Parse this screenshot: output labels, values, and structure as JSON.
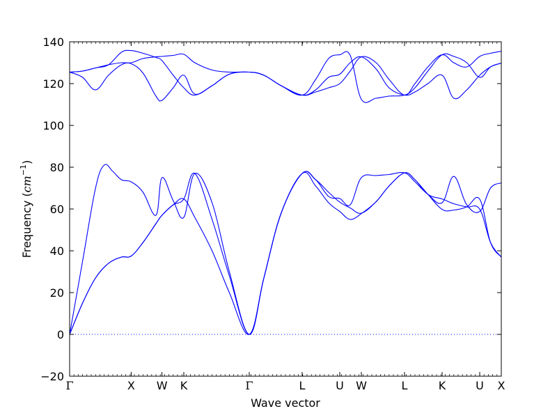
{
  "chart_data": {
    "type": "line",
    "title": "",
    "xlabel": "Wave vector",
    "ylabel": "Frequency (cm⁻¹)",
    "ylabel_parts": {
      "text": "Frequency (",
      "unit": "cm",
      "exp": "−1",
      "close": ")"
    },
    "ylim": [
      -20,
      140
    ],
    "xlim": [
      0,
      10.0
    ],
    "yticks": [
      -20,
      0,
      20,
      40,
      60,
      80,
      100,
      120,
      140
    ],
    "ytick_labels": [
      "−20",
      "0",
      "20",
      "40",
      "60",
      "80",
      "100",
      "120",
      "140"
    ],
    "xticks": [
      {
        "x": 0.0,
        "label": "Γ"
      },
      {
        "x": 1.426,
        "label": "X"
      },
      {
        "x": 2.139,
        "label": "W"
      },
      {
        "x": 2.645,
        "label": "K"
      },
      {
        "x": 4.161,
        "label": "Γ"
      },
      {
        "x": 5.387,
        "label": "L"
      },
      {
        "x": 6.258,
        "label": "U"
      },
      {
        "x": 6.758,
        "label": "W"
      },
      {
        "x": 7.758,
        "label": "L"
      },
      {
        "x": 8.629,
        "label": "K"
      },
      {
        "x": 9.5,
        "label": "U"
      },
      {
        "x": 10.0,
        "label": "X"
      }
    ],
    "zero_line": {
      "y": 0,
      "style": "dotted"
    },
    "grid": false,
    "legend": "none",
    "color": "#0000ff",
    "series": [
      {
        "x": [
          0,
          0.3,
          0.6,
          0.9,
          1.2,
          1.426,
          1.7,
          2.0,
          2.139,
          2.4,
          2.645,
          2.9,
          3.3,
          3.7,
          4.161,
          4.5,
          4.9,
          5.387,
          5.7,
          6.0,
          6.258,
          6.5,
          6.758,
          7.1,
          7.4,
          7.758,
          8.0,
          8.3,
          8.629,
          8.9,
          9.2,
          9.5,
          9.75,
          10.0
        ],
        "y": [
          0,
          15,
          27,
          34,
          37,
          37.5,
          44,
          53,
          57,
          62,
          64.8,
          56,
          40,
          20,
          0,
          27,
          58,
          77,
          74,
          68,
          63.3,
          60.5,
          58,
          63.5,
          71,
          77.3,
          74,
          67,
          64.8,
          62.5,
          61,
          59.9,
          44,
          37
        ]
      },
      {
        "x": [
          0,
          0.3,
          0.6,
          0.9,
          1.2,
          1.426,
          1.7,
          2.0,
          2.139,
          2.4,
          2.645,
          2.9,
          3.3,
          3.7,
          4.161,
          4.5,
          4.9,
          5.387,
          5.7,
          6.0,
          6.258,
          6.5,
          6.758,
          7.1,
          7.4,
          7.758,
          8.0,
          8.3,
          8.629,
          8.9,
          9.2,
          9.5,
          9.75,
          10.0
        ],
        "y": [
          0,
          15,
          27,
          34,
          37,
          37.5,
          44,
          53,
          57,
          62,
          64.8,
          77,
          55,
          28,
          0,
          27,
          58,
          77,
          71,
          63,
          58.8,
          55,
          57.8,
          63.5,
          71,
          77.3,
          74,
          67,
          59.8,
          59.5,
          61,
          64.7,
          44,
          37
        ]
      },
      {
        "x": [
          0,
          0.3,
          0.6,
          0.8,
          1.0,
          1.2,
          1.426,
          1.7,
          2.0,
          2.139,
          2.4,
          2.645,
          2.9,
          3.3,
          3.7,
          4.161,
          4.5,
          4.9,
          5.387,
          5.7,
          6.0,
          6.258,
          6.5,
          6.758,
          7.1,
          7.4,
          7.758,
          8.0,
          8.3,
          8.629,
          8.9,
          9.2,
          9.5,
          9.75,
          10.0
        ],
        "y": [
          0,
          35,
          70,
          81,
          78,
          74,
          73,
          68,
          57,
          75,
          64,
          56,
          77,
          63,
          30,
          0,
          27,
          58,
          77,
          74,
          66,
          65,
          62,
          75,
          76,
          76.5,
          77.3,
          73,
          67,
          63,
          75.6,
          62,
          58.8,
          70,
          72.5
        ]
      },
      {
        "x": [
          0,
          0.3,
          0.6,
          0.9,
          1.2,
          1.426,
          1.7,
          2.0,
          2.139,
          2.4,
          2.645,
          2.9,
          3.3,
          3.7,
          4.161,
          4.5,
          4.9,
          5.387,
          5.7,
          6.0,
          6.258,
          6.5,
          6.758,
          7.1,
          7.4,
          7.758,
          8.0,
          8.3,
          8.629,
          8.9,
          9.2,
          9.5,
          9.75,
          10.0
        ],
        "y": [
          125.5,
          123,
          117,
          124,
          129,
          129.5,
          125,
          114,
          112,
          118,
          124,
          115,
          119,
          124.5,
          125.5,
          124,
          119,
          114.5,
          117,
          123,
          124.5,
          130,
          132.8,
          127,
          118,
          114.5,
          116,
          120,
          124,
          113,
          117,
          124,
          128,
          129.8
        ]
      },
      {
        "x": [
          0,
          0.3,
          0.6,
          0.9,
          1.2,
          1.426,
          1.7,
          2.0,
          2.139,
          2.4,
          2.645,
          2.9,
          3.3,
          3.7,
          4.161,
          4.5,
          4.9,
          5.387,
          5.7,
          6.0,
          6.258,
          6.5,
          6.758,
          7.1,
          7.4,
          7.758,
          8.0,
          8.3,
          8.629,
          8.9,
          9.2,
          9.5,
          9.75,
          10.0
        ],
        "y": [
          125.5,
          126,
          127.5,
          129,
          130,
          130,
          132,
          132.8,
          133,
          133.5,
          134,
          130,
          126.5,
          125.5,
          125.5,
          124,
          119,
          114.5,
          122,
          132,
          133.8,
          133.5,
          112.5,
          113,
          114,
          114.5,
          118,
          126,
          133.8,
          133,
          130,
          123,
          128,
          129.8
        ]
      },
      {
        "x": [
          0,
          0.3,
          0.6,
          0.9,
          1.2,
          1.426,
          1.7,
          2.0,
          2.139,
          2.4,
          2.645,
          2.9,
          3.3,
          3.7,
          4.161,
          4.5,
          4.9,
          5.387,
          5.7,
          6.0,
          6.258,
          6.5,
          6.758,
          7.1,
          7.4,
          7.758,
          8.0,
          8.3,
          8.629,
          8.9,
          9.2,
          9.5,
          9.75,
          10.0
        ],
        "y": [
          125.5,
          126,
          127.5,
          129,
          135,
          135.8,
          134.5,
          132.5,
          131,
          124,
          118,
          114.5,
          119,
          124.5,
          125.5,
          124,
          119,
          114.5,
          116,
          118,
          120,
          126,
          132.8,
          130,
          122,
          114.5,
          120,
          128,
          133.8,
          130,
          128,
          133,
          134.5,
          135.5
        ]
      }
    ]
  }
}
